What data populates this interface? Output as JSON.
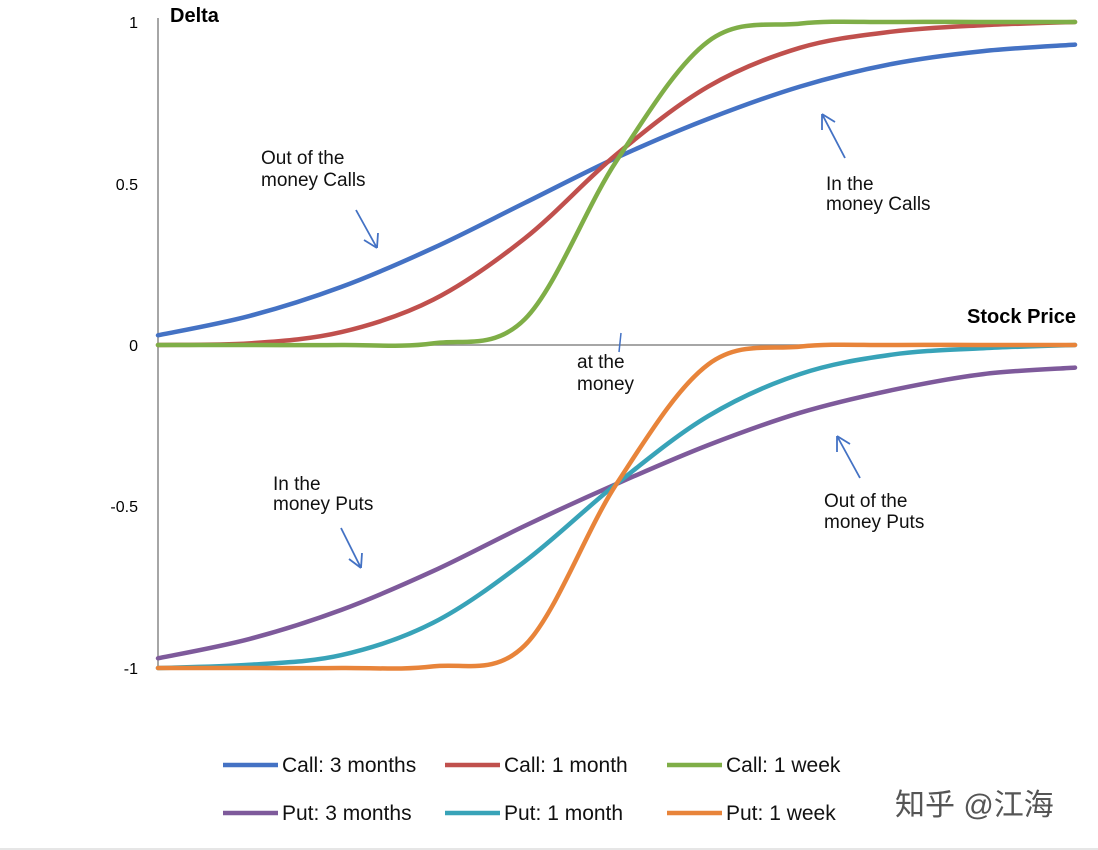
{
  "chart_data": {
    "type": "line",
    "title": "",
    "ylabel": "Delta",
    "xlabel": "Stock Price",
    "ylim": [
      -1,
      1
    ],
    "xlim": [
      0,
      100
    ],
    "yticks": [
      "1",
      "0.5",
      "0",
      "-0.5",
      "-1"
    ],
    "ytick_values": [
      1,
      0.5,
      0,
      -0.5,
      -1
    ],
    "grid": false,
    "legend_position": "bottom",
    "series": [
      {
        "name": "Call: 3 months",
        "color": "#4472C4",
        "x": [
          0,
          10,
          20,
          30,
          40,
          50,
          60,
          70,
          80,
          90,
          100
        ],
        "values": [
          0.03,
          0.09,
          0.18,
          0.3,
          0.44,
          0.58,
          0.7,
          0.8,
          0.87,
          0.91,
          0.93
        ]
      },
      {
        "name": "Call: 1 month",
        "color": "#C0504D",
        "x": [
          0,
          10,
          20,
          30,
          40,
          50,
          60,
          70,
          80,
          90,
          100
        ],
        "values": [
          0.0,
          0.005,
          0.04,
          0.14,
          0.33,
          0.59,
          0.8,
          0.92,
          0.97,
          0.99,
          1.0
        ]
      },
      {
        "name": "Call: 1 week",
        "color": "#7FAE47",
        "x": [
          0,
          10,
          20,
          30,
          40,
          50,
          60,
          70,
          80,
          90,
          100
        ],
        "values": [
          0.0,
          0.0,
          0.0,
          0.005,
          0.08,
          0.57,
          0.94,
          0.995,
          1.0,
          1.0,
          1.0
        ]
      },
      {
        "name": "Put: 3 months",
        "color": "#7E5A9B",
        "x": [
          0,
          10,
          20,
          30,
          40,
          50,
          60,
          70,
          80,
          90,
          100
        ],
        "values": [
          -0.97,
          -0.91,
          -0.82,
          -0.7,
          -0.56,
          -0.43,
          -0.31,
          -0.21,
          -0.14,
          -0.09,
          -0.07
        ]
      },
      {
        "name": "Put: 1 month",
        "color": "#38A3B8",
        "x": [
          0,
          10,
          20,
          30,
          40,
          50,
          60,
          70,
          80,
          90,
          100
        ],
        "values": [
          -1.0,
          -0.99,
          -0.96,
          -0.86,
          -0.67,
          -0.43,
          -0.22,
          -0.09,
          -0.03,
          -0.01,
          0.0
        ]
      },
      {
        "name": "Put: 1 week",
        "color": "#E8843A",
        "x": [
          0,
          10,
          20,
          30,
          40,
          50,
          60,
          70,
          80,
          90,
          100
        ],
        "values": [
          -1.0,
          -1.0,
          -1.0,
          -0.995,
          -0.93,
          -0.43,
          -0.06,
          -0.005,
          0.0,
          0.0,
          0.0
        ]
      }
    ],
    "annotations": [
      {
        "lines": [
          "Out of the",
          "money Calls"
        ]
      },
      {
        "lines": [
          "In the",
          "money Calls"
        ]
      },
      {
        "lines": [
          "at the",
          "money"
        ]
      },
      {
        "lines": [
          "In the",
          "money Puts"
        ]
      },
      {
        "lines": [
          "Out of the",
          "money Puts"
        ]
      }
    ]
  },
  "watermark": "知乎 @江海"
}
